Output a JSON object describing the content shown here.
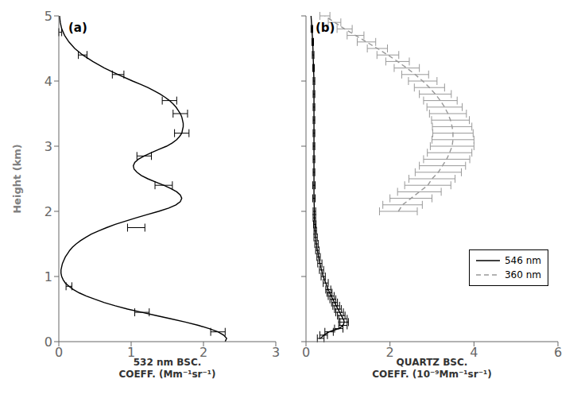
{
  "chart_data": [
    {
      "type": "line",
      "annotation": "(a)",
      "x_label": "532 nm BSC.\nCOEFF. (Mm⁻¹sr⁻¹)",
      "y_label": "Height (km)",
      "xlim": [
        0,
        3
      ],
      "xticks": [
        0,
        1,
        2,
        3
      ],
      "ylim": [
        0,
        5
      ],
      "yticks": [
        0,
        1,
        2,
        3,
        4,
        5
      ],
      "grid": false,
      "series": [
        {
          "color": "#000000",
          "line_style": "solid",
          "x": [
            2.3,
            2.32,
            2.28,
            2.2,
            2.08,
            1.93,
            1.75,
            1.55,
            1.35,
            1.15,
            0.95,
            0.78,
            0.63,
            0.5,
            0.38,
            0.28,
            0.2,
            0.14,
            0.09,
            0.06,
            0.04,
            0.03,
            0.03,
            0.04,
            0.05,
            0.07,
            0.09,
            0.12,
            0.15,
            0.19,
            0.24,
            0.3,
            0.37,
            0.45,
            0.55,
            0.66,
            0.78,
            0.92,
            1.07,
            1.22,
            1.38,
            1.52,
            1.62,
            1.68,
            1.7,
            1.68,
            1.63,
            1.55,
            1.45,
            1.34,
            1.23,
            1.14,
            1.08,
            1.04,
            1.03,
            1.05,
            1.1,
            1.18,
            1.28,
            1.38,
            1.49,
            1.57,
            1.63,
            1.67,
            1.7,
            1.71,
            1.72,
            1.72,
            1.71,
            1.7,
            1.68,
            1.65,
            1.62,
            1.58,
            1.53,
            1.47,
            1.4,
            1.32,
            1.23,
            1.13,
            1.02,
            0.82,
            0.63,
            0.47,
            0.33,
            0.22,
            0.14,
            0.08,
            0.04,
            0.02,
            0.01
          ],
          "y": [
            0.0,
            0.05,
            0.1,
            0.15,
            0.2,
            0.25,
            0.3,
            0.35,
            0.4,
            0.45,
            0.5,
            0.55,
            0.6,
            0.65,
            0.7,
            0.75,
            0.8,
            0.85,
            0.9,
            0.95,
            1.0,
            1.05,
            1.1,
            1.15,
            1.2,
            1.25,
            1.3,
            1.35,
            1.4,
            1.45,
            1.5,
            1.55,
            1.6,
            1.65,
            1.7,
            1.75,
            1.8,
            1.85,
            1.9,
            1.95,
            2.0,
            2.05,
            2.1,
            2.15,
            2.2,
            2.25,
            2.3,
            2.35,
            2.4,
            2.45,
            2.5,
            2.55,
            2.6,
            2.65,
            2.7,
            2.75,
            2.8,
            2.85,
            2.9,
            2.95,
            3.0,
            3.05,
            3.1,
            3.15,
            3.2,
            3.25,
            3.3,
            3.35,
            3.4,
            3.45,
            3.5,
            3.55,
            3.6,
            3.65,
            3.7,
            3.75,
            3.8,
            3.85,
            3.9,
            3.95,
            4.0,
            4.1,
            4.2,
            4.3,
            4.4,
            4.5,
            4.6,
            4.7,
            4.8,
            4.9,
            5.0
          ],
          "error_bars": {
            "x": [
              2.2,
              1.15,
              0.14,
              1.07,
              1.45,
              1.18,
              1.7,
              1.68,
              1.53,
              0.82,
              0.33,
              0.02
            ],
            "y": [
              0.15,
              0.45,
              0.85,
              1.75,
              2.4,
              2.85,
              3.2,
              3.5,
              3.7,
              4.1,
              4.4,
              4.75
            ],
            "xerr": [
              0.1,
              0.1,
              0.04,
              0.12,
              0.12,
              0.1,
              0.1,
              0.1,
              0.1,
              0.08,
              0.06,
              0.02
            ]
          }
        }
      ]
    },
    {
      "type": "line",
      "annotation": "(b)",
      "x_label": "QUARTZ BSC.\nCOEFF. (10⁻⁹Mm⁻¹sr⁻¹)",
      "xlim": [
        0,
        6
      ],
      "xticks": [
        0,
        2,
        4,
        6
      ],
      "ylim": [
        0,
        5
      ],
      "yticks": [
        0,
        1,
        2,
        3,
        4,
        5
      ],
      "grid": false,
      "tick_labels": "x",
      "legend": "lower right",
      "series": [
        {
          "name": "546 nm",
          "color": "#000000",
          "line_style": "solid",
          "x": [
            0.35,
            0.42,
            0.55,
            0.68,
            0.78,
            0.85,
            0.88,
            0.9,
            0.91,
            0.9,
            0.88,
            0.86,
            0.84,
            0.82,
            0.8,
            0.78,
            0.76,
            0.72,
            0.68,
            0.64,
            0.6,
            0.56,
            0.53,
            0.5,
            0.47,
            0.44,
            0.41,
            0.37,
            0.33,
            0.3,
            0.27,
            0.25,
            0.23,
            0.22,
            0.21,
            0.2,
            0.2,
            0.19,
            0.19,
            0.19,
            0.19,
            0.19,
            0.19,
            0.19,
            0.19,
            0.19,
            0.19,
            0.18,
            0.17,
            0.16,
            0.14,
            0.12
          ],
          "y": [
            0.05,
            0.1,
            0.15,
            0.18,
            0.2,
            0.23,
            0.25,
            0.28,
            0.3,
            0.33,
            0.35,
            0.38,
            0.4,
            0.43,
            0.45,
            0.48,
            0.5,
            0.55,
            0.6,
            0.65,
            0.7,
            0.75,
            0.8,
            0.85,
            0.9,
            0.95,
            1.0,
            1.1,
            1.2,
            1.3,
            1.4,
            1.5,
            1.6,
            1.7,
            1.8,
            1.9,
            2.0,
            2.2,
            2.4,
            2.6,
            2.8,
            3.0,
            3.2,
            3.4,
            3.6,
            3.8,
            4.0,
            4.2,
            4.4,
            4.6,
            4.8,
            5.0
          ],
          "error_bars": {
            "x": [
              0.35,
              0.42,
              0.55,
              0.78,
              0.88,
              0.91,
              0.88,
              0.84,
              0.8,
              0.76,
              0.72,
              0.68,
              0.64,
              0.6,
              0.56,
              0.53,
              0.47,
              0.41,
              0.37,
              0.33,
              0.3,
              0.27,
              0.25,
              0.23,
              0.22,
              0.21,
              0.2,
              0.2,
              0.19,
              0.19,
              0.19,
              0.19,
              0.19,
              0.19,
              0.19,
              0.19,
              0.19,
              0.19,
              0.18,
              0.17,
              0.16,
              0.14
            ],
            "y": [
              0.05,
              0.1,
              0.15,
              0.2,
              0.25,
              0.3,
              0.35,
              0.4,
              0.45,
              0.5,
              0.55,
              0.6,
              0.65,
              0.7,
              0.75,
              0.8,
              0.9,
              1.0,
              1.1,
              1.2,
              1.3,
              1.4,
              1.5,
              1.6,
              1.7,
              1.8,
              1.9,
              2.0,
              2.2,
              2.4,
              2.6,
              2.8,
              3.0,
              3.2,
              3.4,
              3.6,
              3.8,
              4.0,
              4.2,
              4.4,
              4.6,
              4.8
            ],
            "xerr": [
              0.08,
              0.09,
              0.1,
              0.1,
              0.1,
              0.1,
              0.1,
              0.09,
              0.09,
              0.08,
              0.08,
              0.07,
              0.07,
              0.07,
              0.06,
              0.06,
              0.06,
              0.05,
              0.05,
              0.05,
              0.04,
              0.04,
              0.04,
              0.04,
              0.03,
              0.03,
              0.03,
              0.03,
              0.03,
              0.03,
              0.02,
              0.02,
              0.02,
              0.02,
              0.02,
              0.02,
              0.02,
              0.02,
              0.02,
              0.02,
              0.02,
              0.02
            ]
          }
        },
        {
          "name": "360 nm",
          "color": "#999999",
          "line_style": "dashed",
          "x": [
            2.2,
            2.3,
            2.5,
            2.7,
            2.9,
            3.0,
            3.15,
            3.25,
            3.35,
            3.42,
            3.48,
            3.5,
            3.5,
            3.48,
            3.44,
            3.38,
            3.3,
            3.2,
            3.08,
            2.94,
            2.78,
            2.6,
            2.4,
            2.18,
            1.95,
            1.7,
            1.44,
            1.18,
            0.92,
            0.68,
            0.45
          ],
          "y": [
            2.0,
            2.1,
            2.2,
            2.3,
            2.4,
            2.5,
            2.6,
            2.7,
            2.8,
            2.9,
            3.0,
            3.1,
            3.2,
            3.3,
            3.4,
            3.5,
            3.6,
            3.7,
            3.8,
            3.9,
            4.0,
            4.1,
            4.2,
            4.3,
            4.4,
            4.5,
            4.6,
            4.7,
            4.8,
            4.9,
            5.0
          ],
          "error_bars": {
            "x": [
              2.2,
              2.3,
              2.5,
              2.7,
              2.9,
              3.0,
              3.15,
              3.25,
              3.35,
              3.42,
              3.48,
              3.5,
              3.5,
              3.48,
              3.44,
              3.38,
              3.3,
              3.2,
              3.08,
              2.94,
              2.78,
              2.6,
              2.4,
              2.18,
              1.95,
              1.7,
              1.44,
              1.18,
              0.92,
              0.68,
              0.45
            ],
            "y": [
              2.0,
              2.1,
              2.2,
              2.3,
              2.4,
              2.5,
              2.6,
              2.7,
              2.8,
              2.9,
              3.0,
              3.1,
              3.2,
              3.3,
              3.4,
              3.5,
              3.6,
              3.7,
              3.8,
              3.9,
              4.0,
              4.1,
              4.2,
              4.3,
              4.4,
              4.5,
              4.6,
              4.7,
              4.8,
              4.9,
              5.0
            ],
            "xerr": [
              0.45,
              0.47,
              0.5,
              0.52,
              0.55,
              0.55,
              0.55,
              0.55,
              0.55,
              0.53,
              0.52,
              0.5,
              0.48,
              0.47,
              0.45,
              0.44,
              0.42,
              0.4,
              0.38,
              0.36,
              0.34,
              0.32,
              0.3,
              0.28,
              0.26,
              0.24,
              0.22,
              0.2,
              0.18,
              0.15,
              0.12
            ]
          }
        }
      ]
    }
  ]
}
